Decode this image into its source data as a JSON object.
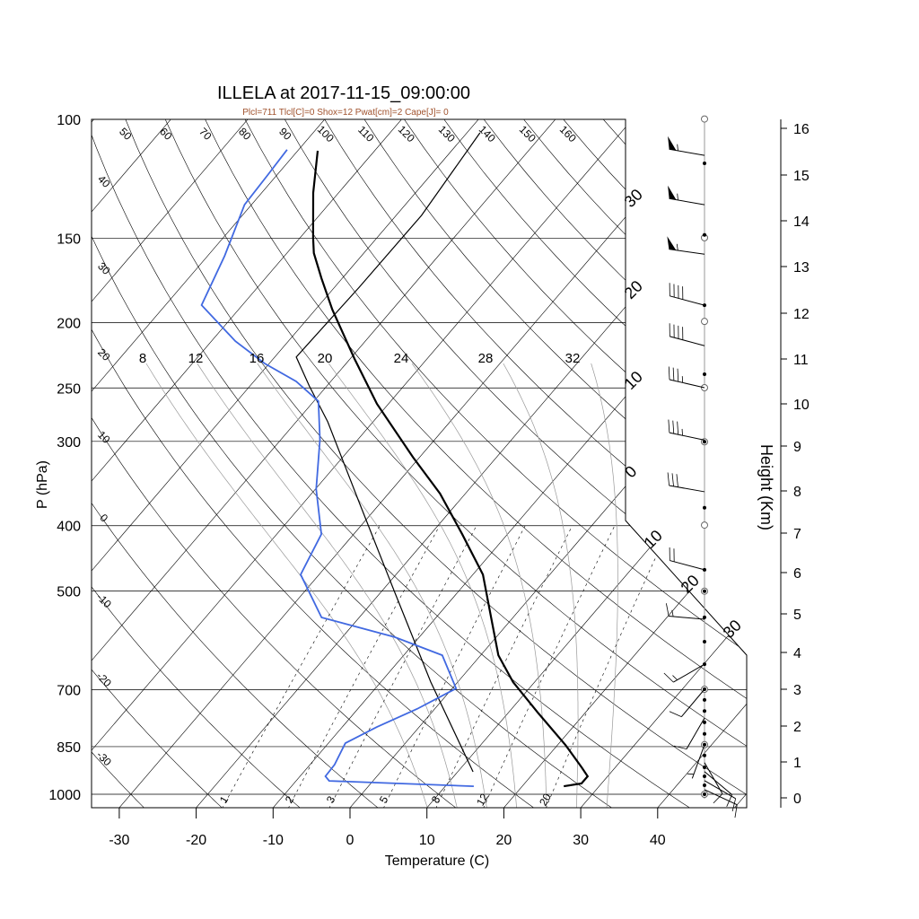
{
  "chart_data": {
    "type": "skew-t",
    "title": "ILLELA at 2017-11-15_09:00:00",
    "subtitle": "Plcl=711 Tlcl[C]=0 Shox=12 Pwat[cm]=2 Cape[J]= 0",
    "xlabel": "Temperature (C)",
    "ylabel": "P (hPa)",
    "y2label": "Height (Km)",
    "x_ticks": [
      -30,
      -20,
      -10,
      0,
      10,
      20,
      30,
      40
    ],
    "p_ticks": [
      100,
      150,
      200,
      250,
      300,
      400,
      500,
      700,
      850,
      1000
    ],
    "height_ticks": [
      0,
      1,
      2,
      3,
      4,
      5,
      6,
      7,
      8,
      9,
      10,
      11,
      12,
      13,
      14,
      15,
      16
    ],
    "isotherm_labels_upper": [
      "30",
      "20",
      "10",
      "0"
    ],
    "isotherm_labels_lower": [
      "10",
      "20",
      "30"
    ],
    "dry_adiabat_labels_left": [
      "40",
      "30",
      "20",
      "10",
      "0",
      "-10",
      "-20",
      "-30"
    ],
    "dry_adiabat_labels_top": [
      "50",
      "60",
      "70",
      "80",
      "90",
      "100",
      "110",
      "120",
      "130",
      "140",
      "150",
      "160"
    ],
    "moist_adiabats": [
      8,
      12,
      16,
      20,
      24,
      28,
      32
    ],
    "mixing_ratios": [
      1,
      2,
      3,
      5,
      8,
      12,
      20
    ],
    "colors": {
      "temperature": "#000000",
      "dewpoint": "#4169e1",
      "parcel": "#000000",
      "subtitle": "#a0522d"
    },
    "temperature": [
      {
        "p": 111.3,
        "t": -77.4
      },
      {
        "p": 128.5,
        "t": -73.3
      },
      {
        "p": 149.8,
        "t": -68.3
      },
      {
        "p": 157.8,
        "t": -66.5
      },
      {
        "p": 172,
        "t": -62.7
      },
      {
        "p": 191.4,
        "t": -57.8
      },
      {
        "p": 226.5,
        "t": -49.4
      },
      {
        "p": 264,
        "t": -41.5
      },
      {
        "p": 317,
        "t": -30.8
      },
      {
        "p": 358.5,
        "t": -23.3
      },
      {
        "p": 411.7,
        "t": -15.9
      },
      {
        "p": 472.5,
        "t": -8.7
      },
      {
        "p": 550.5,
        "t": -2.6
      },
      {
        "p": 622.3,
        "t": 2.3
      },
      {
        "p": 682,
        "t": 7.2
      },
      {
        "p": 759,
        "t": 14.0
      },
      {
        "p": 845,
        "t": 21.0
      },
      {
        "p": 912,
        "t": 25.6
      },
      {
        "p": 940.6,
        "t": 27.4
      },
      {
        "p": 964,
        "t": 27.4
      },
      {
        "p": 973,
        "t": 25.4
      }
    ],
    "dewpoint": [
      {
        "p": 110.9,
        "t": -81.5
      },
      {
        "p": 120.9,
        "t": -81.2
      },
      {
        "p": 133.8,
        "t": -80.9
      },
      {
        "p": 159.3,
        "t": -77.8
      },
      {
        "p": 188.5,
        "t": -75.3
      },
      {
        "p": 213.1,
        "t": -66.9
      },
      {
        "p": 230,
        "t": -60.6
      },
      {
        "p": 244.5,
        "t": -54.5
      },
      {
        "p": 261.6,
        "t": -49.4
      },
      {
        "p": 298.4,
        "t": -44.9
      },
      {
        "p": 353.1,
        "t": -39.9
      },
      {
        "p": 411.7,
        "t": -34.2
      },
      {
        "p": 472.5,
        "t": -32.4
      },
      {
        "p": 547,
        "t": -24.9
      },
      {
        "p": 585,
        "t": -13.2
      },
      {
        "p": 622.3,
        "t": -5.0
      },
      {
        "p": 697,
        "t": 0.5
      },
      {
        "p": 747.5,
        "t": -2.3
      },
      {
        "p": 795,
        "t": -5.5
      },
      {
        "p": 840,
        "t": -7.8
      },
      {
        "p": 904,
        "t": -6.8
      },
      {
        "p": 940.6,
        "t": -6.7
      },
      {
        "p": 955.3,
        "t": -5.7
      },
      {
        "p": 973,
        "t": 13.7
      }
    ],
    "parcel": [
      {
        "p": 926.3,
        "t": 12.0
      },
      {
        "p": 682,
        "t": -3.5
      },
      {
        "p": 502,
        "t": -18.2
      },
      {
        "p": 369.7,
        "t": -32.8
      },
      {
        "p": 280.6,
        "t": -45.9
      },
      {
        "p": 248.3,
        "t": -52.3
      },
      {
        "p": 225,
        "t": -57.2
      },
      {
        "p": 177.3,
        "t": -56.8
      },
      {
        "p": 138.8,
        "t": -56.7
      },
      {
        "p": 104.7,
        "t": -58.3
      }
    ],
    "wind_barbs": [
      {
        "h": 15.42,
        "dir": 280,
        "kt": 55
      },
      {
        "h": 14.35,
        "dir": 280,
        "kt": 55
      },
      {
        "h": 13.27,
        "dir": 278,
        "kt": 55
      },
      {
        "h": 12.17,
        "dir": 285,
        "kt": 40
      },
      {
        "h": 11.29,
        "dir": 285,
        "kt": 40
      },
      {
        "h": 10.36,
        "dir": 283,
        "kt": 35
      },
      {
        "h": 9.14,
        "dir": 282,
        "kt": 35
      },
      {
        "h": 7.98,
        "dir": 280,
        "kt": 30
      },
      {
        "h": 6.07,
        "dir": 285,
        "kt": 20
      },
      {
        "h": 4.86,
        "dir": 275,
        "kt": 15
      },
      {
        "h": 3.68,
        "dir": 240,
        "kt": 15
      },
      {
        "h": 3.0,
        "dir": 220,
        "kt": 10
      },
      {
        "h": 2.22,
        "dir": 210,
        "kt": 10
      },
      {
        "h": 1.48,
        "dir": 200,
        "kt": 5
      },
      {
        "h": 0.98,
        "dir": 150,
        "kt": 10
      },
      {
        "h": 0.73,
        "dir": 130,
        "kt": 10
      },
      {
        "h": 0.48,
        "dir": 120,
        "kt": 10
      },
      {
        "h": 0.23,
        "dir": 115,
        "kt": 10
      }
    ],
    "obs_levels_km": [
      15.25,
      13.69,
      12.17,
      10.66,
      9.1,
      7.6,
      6.07,
      5.55,
      4.91,
      4.28,
      3.68,
      3.0,
      2.71,
      2.41,
      2.1,
      1.78,
      1.48,
      1.18,
      0.85,
      0.6,
      0.35,
      0.1
    ],
    "open_levels_km": [
      16.2,
      13.63,
      11.82,
      10.36,
      9.1,
      7.19,
      5.55,
      3.0,
      1.48,
      0.1
    ]
  }
}
